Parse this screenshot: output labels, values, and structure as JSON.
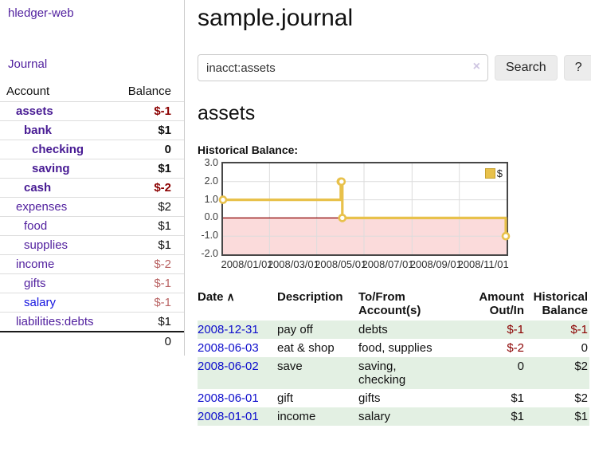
{
  "colors": {
    "brand_purple": "#52219f",
    "link_blue": "#1414e0",
    "date_link_blue": "#0d0dcc",
    "negative_strong": "#8b0000",
    "negative_soft": "#b96363",
    "stripe_green": "#e3f0e3",
    "chart_gold": "#e8c14b",
    "chart_negative_fill": "#fbdbdb",
    "chart_zero_line": "#8b0000"
  },
  "sidebar": {
    "brand": "hledger-web",
    "nav_journal": "Journal",
    "accounts": {
      "col_account": "Account",
      "col_balance": "Balance",
      "rows": [
        {
          "name": "assets",
          "depth": 1,
          "balance": "$-1",
          "highlighted": true
        },
        {
          "name": "bank",
          "depth": 2,
          "balance": "$1",
          "highlighted": true
        },
        {
          "name": "checking",
          "depth": 3,
          "balance": "0",
          "highlighted": true
        },
        {
          "name": "saving",
          "depth": 3,
          "balance": "$1",
          "highlighted": true
        },
        {
          "name": "cash",
          "depth": 2,
          "balance": "$-2",
          "highlighted": true
        },
        {
          "name": "expenses",
          "depth": 1,
          "balance": "$2"
        },
        {
          "name": "food",
          "depth": 2,
          "balance": "$1"
        },
        {
          "name": "supplies",
          "depth": 2,
          "balance": "$1"
        },
        {
          "name": "income",
          "depth": 1,
          "balance": "$-2"
        },
        {
          "name": "gifts",
          "depth": 2,
          "balance": "$-1"
        },
        {
          "name": "salary",
          "depth": 2,
          "balance": "$-1",
          "blue_link": true
        },
        {
          "name": "liabilities:debts",
          "depth": 1,
          "balance": "$1"
        }
      ],
      "total": "0"
    }
  },
  "main": {
    "title": "sample.journal",
    "search": {
      "value": "inacct:assets",
      "clear_icon": "×",
      "button": "Search",
      "help": "?"
    },
    "heading": "assets",
    "chart_label": "Historical Balance:"
  },
  "chart_data": {
    "type": "line",
    "step": true,
    "title": "Historical Balance",
    "x_range": [
      "2008-01-01",
      "2009-01-01"
    ],
    "ylim": [
      -2,
      3
    ],
    "y_ticks": [
      "3.0",
      "2.0",
      "1.0",
      "0.0",
      "-1.0",
      "-2.0"
    ],
    "x_ticks": [
      "2008/01/01",
      "2008/03/01",
      "2008/05/01",
      "2008/07/01",
      "2008/09/01",
      "2008/11/01"
    ],
    "grid": true,
    "legend": {
      "position": "top-right",
      "label": "$"
    },
    "negative_region_shaded": true,
    "series": [
      {
        "name": "$",
        "points": [
          {
            "date": "2008-01-01",
            "value": 1
          },
          {
            "date": "2008-06-01",
            "value": 2
          },
          {
            "date": "2008-06-02",
            "value": 2
          },
          {
            "date": "2008-06-03",
            "value": 0
          },
          {
            "date": "2008-12-31",
            "value": -1
          }
        ]
      }
    ]
  },
  "register": {
    "headers": {
      "date": "Date",
      "description": "Description",
      "accounts": "To/From\nAccount(s)",
      "amount": "Amount\nOut/In",
      "balance": "Historical\nBalance"
    },
    "sort_icon": "∧",
    "rows": [
      {
        "date": "2008-12-31",
        "description": "pay off",
        "accounts": "debts",
        "amount": "$-1",
        "balance": "$-1"
      },
      {
        "date": "2008-06-03",
        "description": "eat & shop",
        "accounts": "food, supplies",
        "amount": "$-2",
        "balance": "0"
      },
      {
        "date": "2008-06-02",
        "description": "save",
        "accounts": "saving,\nchecking",
        "amount": "0",
        "balance": "$2"
      },
      {
        "date": "2008-06-01",
        "description": "gift",
        "accounts": "gifts",
        "amount": "$1",
        "balance": "$2"
      },
      {
        "date": "2008-01-01",
        "description": "income",
        "accounts": "salary",
        "amount": "$1",
        "balance": "$1"
      }
    ]
  }
}
